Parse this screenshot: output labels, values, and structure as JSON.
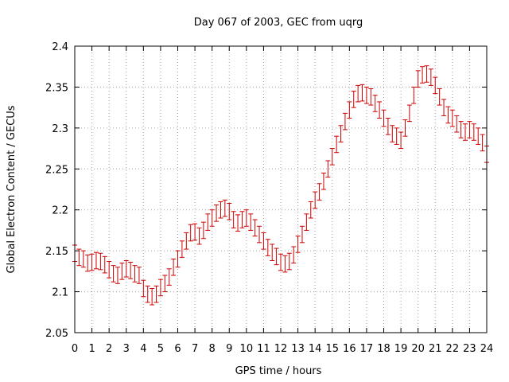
{
  "chart_data": {
    "type": "scatter",
    "title": "Day 067 of 2003, GEC from uqrg",
    "xlabel": "GPS time / hours",
    "ylabel": "Global Electron Content / GECUs",
    "xlim": [
      0,
      24
    ],
    "ylim": [
      2.05,
      2.4
    ],
    "x_ticks": [
      0,
      1,
      2,
      3,
      4,
      5,
      6,
      7,
      8,
      9,
      10,
      11,
      12,
      13,
      14,
      15,
      16,
      17,
      18,
      19,
      20,
      21,
      22,
      23,
      24
    ],
    "x_tick_labels": [
      "0",
      "1",
      "2",
      "3",
      "4",
      "5",
      "6",
      "7",
      "8",
      "9",
      "10",
      "11",
      "12",
      "13",
      "14",
      "15",
      "16",
      "17",
      "18",
      "19",
      "20",
      "21",
      "22",
      "23",
      "24"
    ],
    "y_ticks": [
      2.05,
      2.1,
      2.15,
      2.2,
      2.25,
      2.3,
      2.35,
      2.4
    ],
    "y_tick_labels": [
      "2.05",
      "2.1",
      "2.15",
      "2.2",
      "2.25",
      "2.3",
      "2.35",
      "2.4"
    ],
    "grid": true,
    "error_bar": 0.01,
    "series_color": "#cc0000",
    "grid_color": "#a0a0a0",
    "x": [
      0,
      0.25,
      0.5,
      0.75,
      1,
      1.25,
      1.5,
      1.75,
      2,
      2.25,
      2.5,
      2.75,
      3,
      3.25,
      3.5,
      3.75,
      4,
      4.25,
      4.5,
      4.75,
      5,
      5.25,
      5.5,
      5.75,
      6,
      6.25,
      6.5,
      6.75,
      7,
      7.25,
      7.5,
      7.75,
      8,
      8.25,
      8.5,
      8.75,
      9,
      9.25,
      9.5,
      9.75,
      10,
      10.25,
      10.5,
      10.75,
      11,
      11.25,
      11.5,
      11.75,
      12,
      12.25,
      12.5,
      12.75,
      13,
      13.25,
      13.5,
      13.75,
      14,
      14.25,
      14.5,
      14.75,
      15,
      15.25,
      15.5,
      15.75,
      16,
      16.25,
      16.5,
      16.75,
      17,
      17.25,
      17.5,
      17.75,
      18,
      18.25,
      18.5,
      18.75,
      19,
      19.25,
      19.5,
      19.75,
      20,
      20.25,
      20.5,
      20.75,
      21,
      21.25,
      21.5,
      21.75,
      22,
      22.25,
      22.5,
      22.75,
      23,
      23.25,
      23.5,
      23.75,
      24
    ],
    "y": [
      2.147,
      2.142,
      2.14,
      2.135,
      2.136,
      2.138,
      2.137,
      2.133,
      2.127,
      2.122,
      2.12,
      2.125,
      2.128,
      2.126,
      2.122,
      2.12,
      2.104,
      2.097,
      2.094,
      2.097,
      2.105,
      2.11,
      2.118,
      2.13,
      2.14,
      2.152,
      2.162,
      2.172,
      2.173,
      2.168,
      2.175,
      2.185,
      2.19,
      2.196,
      2.2,
      2.202,
      2.198,
      2.188,
      2.184,
      2.188,
      2.19,
      2.185,
      2.178,
      2.17,
      2.162,
      2.154,
      2.148,
      2.143,
      2.136,
      2.134,
      2.137,
      2.145,
      2.158,
      2.17,
      2.185,
      2.2,
      2.212,
      2.222,
      2.235,
      2.25,
      2.265,
      2.28,
      2.293,
      2.308,
      2.322,
      2.335,
      2.342,
      2.343,
      2.34,
      2.338,
      2.33,
      2.322,
      2.312,
      2.302,
      2.293,
      2.29,
      2.285,
      2.3,
      2.318,
      2.34,
      2.36,
      2.365,
      2.366,
      2.362,
      2.352,
      2.338,
      2.325,
      2.316,
      2.312,
      2.305,
      2.298,
      2.295,
      2.298,
      2.295,
      2.29,
      2.282,
      2.268
    ]
  }
}
